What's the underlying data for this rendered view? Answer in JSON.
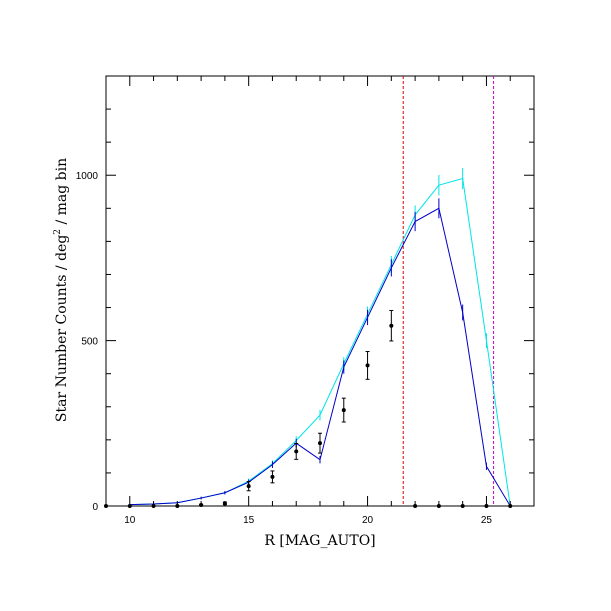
{
  "chart_data": {
    "type": "line",
    "xlabel": "R [MAG_AUTO]",
    "ylabel_main": "Star Number Counts / deg",
    "ylabel_sup": "2",
    "ylabel_tail": " / mag bin",
    "xlim": [
      9,
      27
    ],
    "ylim": [
      0,
      1300
    ],
    "x_ticks": [
      10,
      15,
      20,
      25
    ],
    "y_ticks": [
      0,
      500,
      1000
    ],
    "x_minor_step": 1,
    "y_minor_step": 100,
    "colors": {
      "cyan_model": "#00e5e5",
      "blue_model": "#0000c8",
      "data_points": "#000000",
      "red_limit": "#dd0000",
      "magenta_limit": "#cc00cc"
    },
    "series": [
      {
        "style": "line",
        "color": "#00e5e5",
        "x": [
          10,
          11,
          12,
          13,
          14,
          15,
          16,
          17,
          18,
          19,
          20,
          21,
          22,
          23,
          24,
          25,
          26
        ],
        "y": [
          4,
          6,
          10,
          24,
          40,
          75,
          128,
          198,
          275,
          430,
          580,
          730,
          880,
          970,
          990,
          500,
          0
        ],
        "err": [
          2,
          2,
          3,
          4,
          5,
          8,
          10,
          13,
          16,
          20,
          23,
          26,
          29,
          31,
          32,
          22,
          0
        ]
      },
      {
        "style": "line",
        "color": "#0000c8",
        "x": [
          10,
          11,
          12,
          13,
          14,
          15,
          16,
          17,
          18,
          19,
          20,
          21,
          22,
          23,
          24,
          25,
          26
        ],
        "y": [
          4,
          6,
          10,
          24,
          40,
          72,
          125,
          190,
          140,
          420,
          570,
          720,
          860,
          900,
          585,
          120,
          0
        ],
        "err": [
          2,
          2,
          3,
          4,
          5,
          8,
          10,
          13,
          11,
          20,
          23,
          26,
          29,
          30,
          24,
          11,
          0
        ]
      },
      {
        "style": "points",
        "color": "#000000",
        "x": [
          9,
          10,
          11,
          12,
          13,
          14,
          15,
          16,
          17,
          18,
          19,
          20,
          21,
          22,
          23,
          24,
          25,
          26
        ],
        "y": [
          0,
          0,
          0,
          0,
          3,
          8,
          60,
          88,
          165,
          190,
          290,
          425,
          545,
          0,
          0,
          0,
          0,
          0
        ],
        "err": [
          0,
          0,
          0,
          0,
          2,
          4,
          14,
          18,
          24,
          30,
          36,
          42,
          46,
          0,
          0,
          0,
          0,
          0
        ]
      }
    ],
    "vertical_lines": [
      {
        "x": 21.5,
        "color": "#dd0000",
        "style": "dashed"
      },
      {
        "x": 25.3,
        "color": "#cc00cc",
        "style": "dashed"
      }
    ]
  }
}
